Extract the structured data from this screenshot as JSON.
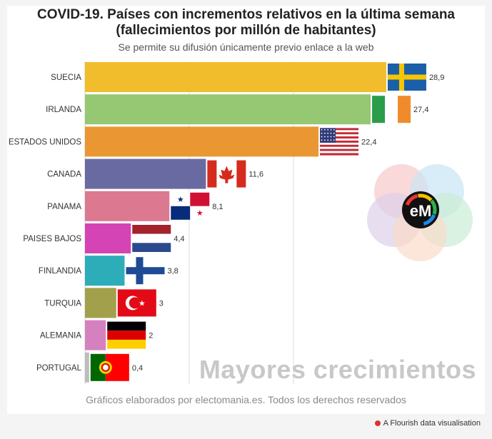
{
  "title_line1": "COVID-19. Países con incrementos relativos en la última semana",
  "title_line2": "(fallecimientos por millón de habitantes)",
  "subtitle": "Se permite su difusión únicamente previo enlace a la web",
  "footer": "Gráficos elaborados por electomania.es. Todos los derechos reservados",
  "watermark": "Mayores crecimientos",
  "flourish_label": "A Flourish data visualisation",
  "logo_text": "eM",
  "chart_data": {
    "type": "bar",
    "orientation": "horizontal",
    "xlim": [
      0,
      30
    ],
    "grid": true,
    "categories": [
      "SUECIA",
      "IRLANDA",
      "ESTADOS UNIDOS",
      "CANADA",
      "PANAMA",
      "PAISES BAJOS",
      "FINLANDIA",
      "TURQUIA",
      "ALEMANIA",
      "PORTUGAL"
    ],
    "values": [
      28.9,
      27.4,
      22.4,
      11.6,
      8.1,
      4.4,
      3.8,
      3,
      2,
      0.4
    ],
    "value_labels": [
      "28,9",
      "27,4",
      "22,4",
      "11,6",
      "8,1",
      "4,4",
      "3,8",
      "3",
      "2",
      "0,4"
    ],
    "colors": [
      "#f2bd2c",
      "#96c873",
      "#ea9733",
      "#6a6aa2",
      "#dc7890",
      "#d444b4",
      "#2cadb8",
      "#a3a04c",
      "#d681bf",
      "#bdbdbd"
    ],
    "flags": [
      "sweden",
      "ireland",
      "usa",
      "canada",
      "panama",
      "netherlands",
      "finland",
      "turkey",
      "germany",
      "portugal"
    ]
  }
}
